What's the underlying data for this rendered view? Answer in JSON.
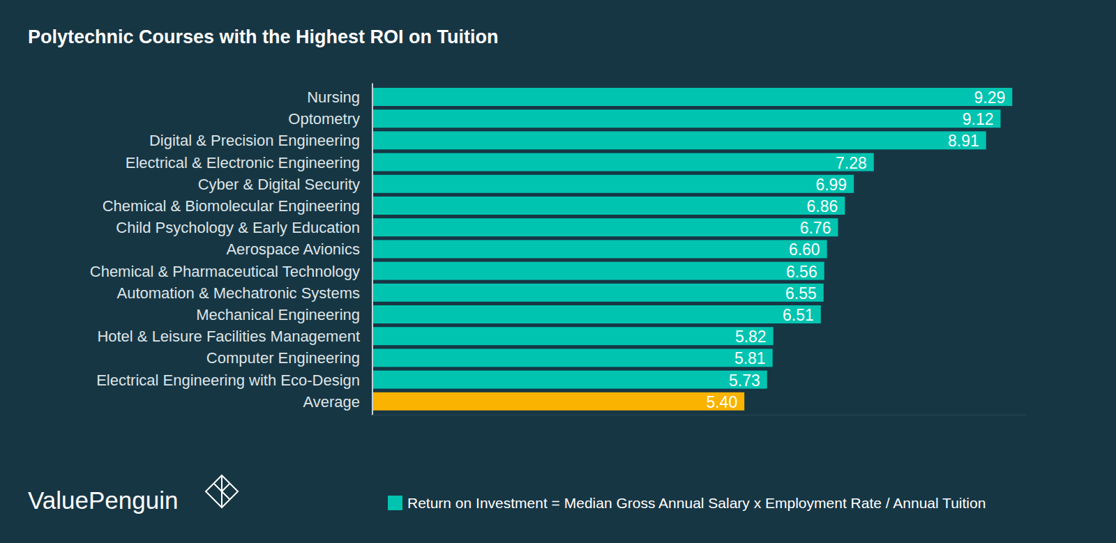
{
  "chart_data": {
    "type": "bar",
    "orientation": "horizontal",
    "title": "Polytechnic Courses with the Highest ROI on Tuition",
    "source": "ValuePenguin",
    "categories": [
      "Nursing",
      "Optometry",
      "Digital & Precision Engineering",
      "Electrical & Electronic Engineering",
      "Cyber & Digital Security",
      "Chemical & Biomolecular Engineering",
      "Child Psychology & Early Education",
      "Aerospace Avionics",
      "Chemical & Pharmaceutical Technology",
      "Automation & Mechatronic Systems",
      "Mechanical Engineering",
      "Hotel & Leisure Facilities Management",
      "Computer Engineering",
      "Electrical Engineering with Eco-Design",
      "Average"
    ],
    "series": [
      {
        "name": "Return on Investment = Median Gross Annual Salary x Employment Rate / Annual Tuition",
        "color": "#00c4b0",
        "colors": [
          "#00c4b0",
          "#00c4b0",
          "#00c4b0",
          "#00c4b0",
          "#00c4b0",
          "#00c4b0",
          "#00c4b0",
          "#00c4b0",
          "#00c4b0",
          "#00c4b0",
          "#00c4b0",
          "#00c4b0",
          "#00c4b0",
          "#00c4b0",
          "#f9b300"
        ],
        "values": [
          9.29,
          9.12,
          8.91,
          7.28,
          6.99,
          6.86,
          6.76,
          6.6,
          6.56,
          6.55,
          6.51,
          5.82,
          5.81,
          5.73,
          5.4
        ],
        "value_labels": [
          "9.29",
          "9.12",
          "8.91",
          "7.28",
          "6.99",
          "6.86",
          "6.76",
          "6.60",
          "6.56",
          "6.55",
          "6.51",
          "5.82",
          "5.81",
          "5.73",
          "5.40"
        ]
      }
    ],
    "xlim": [
      0,
      9.5
    ],
    "data_labels": true,
    "tick_labels": false,
    "grid": false,
    "legend": "bottom-right"
  }
}
